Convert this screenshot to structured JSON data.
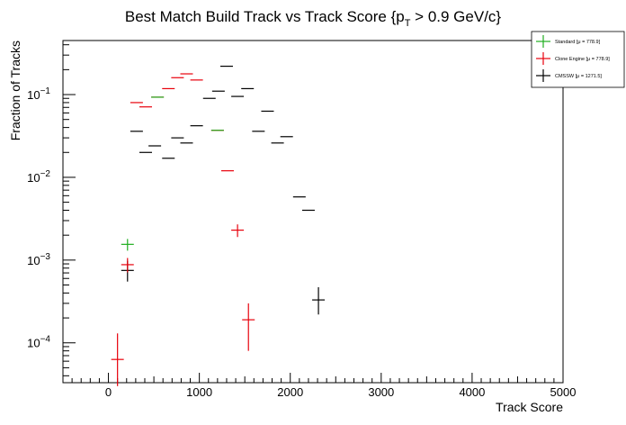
{
  "chart_data": {
    "type": "scatter",
    "title": {
      "main": "Best Match Build Track vs Track Score {p",
      "sub": "T",
      "tail": " > 0.9 GeV/c}"
    },
    "xlabel": "Track Score",
    "ylabel": "Fraction of Tracks",
    "xlim": [
      -500,
      5000
    ],
    "ylim": [
      3.3e-05,
      0.45
    ],
    "y_scale": "log",
    "grid": false,
    "legend_position": "top-right",
    "x_ticks": [
      {
        "value": 0,
        "label": "0"
      },
      {
        "value": 1000,
        "label": "1000"
      },
      {
        "value": 2000,
        "label": "2000"
      },
      {
        "value": 3000,
        "label": "3000"
      },
      {
        "value": 4000,
        "label": "4000"
      },
      {
        "value": 5000,
        "label": "5000"
      }
    ],
    "y_ticks": [
      {
        "value": 0.0001,
        "base": "10",
        "exp": "−4"
      },
      {
        "value": 0.001,
        "base": "10",
        "exp": "−3"
      },
      {
        "value": 0.01,
        "base": "10",
        "exp": "−2"
      },
      {
        "value": 0.1,
        "base": "10",
        "exp": "−1"
      }
    ],
    "series": [
      {
        "name": "CMSSW",
        "mean_label": "[μ = 1271.5]",
        "color": "#000000",
        "points": [
          {
            "x": 210,
            "y": 0.00075,
            "ylo": 0.00055,
            "yhi": 0.00098
          },
          {
            "x": 310,
            "y": 0.036
          },
          {
            "x": 410,
            "y": 0.02
          },
          {
            "x": 510,
            "y": 0.024
          },
          {
            "x": 660,
            "y": 0.017
          },
          {
            "x": 760,
            "y": 0.03
          },
          {
            "x": 860,
            "y": 0.026
          },
          {
            "x": 970,
            "y": 0.042
          },
          {
            "x": 1110,
            "y": 0.09
          },
          {
            "x": 1210,
            "y": 0.11
          },
          {
            "x": 1300,
            "y": 0.22
          },
          {
            "x": 1420,
            "y": 0.095
          },
          {
            "x": 1530,
            "y": 0.118
          },
          {
            "x": 1650,
            "y": 0.036
          },
          {
            "x": 1750,
            "y": 0.063
          },
          {
            "x": 1860,
            "y": 0.026
          },
          {
            "x": 1960,
            "y": 0.031
          },
          {
            "x": 2100,
            "y": 0.0058
          },
          {
            "x": 2200,
            "y": 0.004
          },
          {
            "x": 2310,
            "y": 0.00033,
            "ylo": 0.00022,
            "yhi": 0.00047
          }
        ]
      },
      {
        "name": "Clone Engine",
        "mean_label": "[μ = 778.9]",
        "color": "#e8000b",
        "points": [
          {
            "x": 100,
            "y": 6.3e-05,
            "ylo": 3e-05,
            "yhi": 0.00013
          },
          {
            "x": 210,
            "y": 0.00088,
            "ylo": 0.00071,
            "yhi": 0.00106
          },
          {
            "x": 310,
            "y": 0.08
          },
          {
            "x": 410,
            "y": 0.071
          },
          {
            "x": 540,
            "y": 0.093
          },
          {
            "x": 660,
            "y": 0.118
          },
          {
            "x": 760,
            "y": 0.16
          },
          {
            "x": 860,
            "y": 0.178
          },
          {
            "x": 970,
            "y": 0.15
          },
          {
            "x": 1200,
            "y": 0.037
          },
          {
            "x": 1310,
            "y": 0.012
          },
          {
            "x": 1420,
            "y": 0.0023,
            "ylo": 0.0019,
            "yhi": 0.0027
          },
          {
            "x": 1540,
            "y": 0.00019,
            "ylo": 8e-05,
            "yhi": 0.0003
          }
        ]
      },
      {
        "name": "Standard",
        "mean_label": "[μ = 778.9]",
        "color": "#1fae1f",
        "points": [
          {
            "x": 210,
            "y": 0.00155,
            "ylo": 0.0013,
            "yhi": 0.0018
          },
          {
            "x": 540,
            "y": 0.093
          },
          {
            "x": 1200,
            "y": 0.037
          }
        ]
      }
    ]
  }
}
